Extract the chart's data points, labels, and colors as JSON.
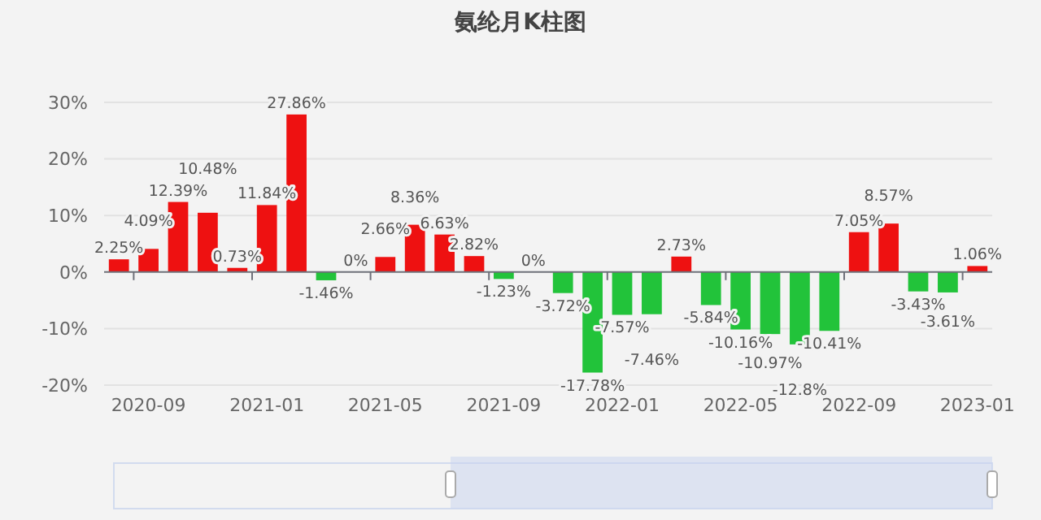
{
  "chart_data": {
    "type": "bar",
    "title": "氨纶月K柱图",
    "categories": [
      null,
      "2020-09",
      null,
      null,
      null,
      "2021-01",
      null,
      null,
      null,
      "2021-05",
      null,
      null,
      null,
      "2021-09",
      null,
      null,
      null,
      "2022-01",
      null,
      null,
      null,
      "2022-05",
      null,
      null,
      null,
      "2022-09",
      null,
      null,
      null,
      "2023-01"
    ],
    "values": [
      2.25,
      4.09,
      12.39,
      10.48,
      0.73,
      11.84,
      27.86,
      -1.46,
      0,
      2.66,
      8.36,
      6.63,
      2.82,
      -1.23,
      0,
      -3.72,
      -17.78,
      -7.57,
      -7.46,
      2.73,
      -5.84,
      -10.16,
      -10.97,
      -12.8,
      -10.41,
      7.05,
      8.57,
      -3.43,
      -3.61,
      1.06
    ],
    "value_labels": [
      "2.25%",
      "4.09%",
      "12.39%",
      "10.48%",
      "0.73%",
      "11.84%",
      "27.86%",
      "-1.46%",
      "0%",
      "2.66%",
      "8.36%",
      "6.63%",
      "2.82%",
      "-1.23%",
      "0%",
      "-3.72%",
      "-17.78%",
      "-7.57%",
      "-7.46%",
      "2.73%",
      "-5.84%",
      "-10.16%",
      "-10.97%",
      "-12.8%",
      "-10.41%",
      "7.05%",
      "8.57%",
      "-3.43%",
      "-3.61%",
      "1.06%"
    ],
    "colors": [
      "#ee1111",
      "#ee1111",
      "#ee1111",
      "#ee1111",
      "#ee1111",
      "#ee1111",
      "#ee1111",
      "#22c33a",
      "#22c33a",
      "#ee1111",
      "#ee1111",
      "#ee1111",
      "#ee1111",
      "#22c33a",
      "#22c33a",
      "#22c33a",
      "#22c33a",
      "#22c33a",
      "#22c33a",
      "#ee1111",
      "#22c33a",
      "#22c33a",
      "#22c33a",
      "#22c33a",
      "#22c33a",
      "#ee1111",
      "#ee1111",
      "#22c33a",
      "#22c33a",
      "#ee1111"
    ],
    "ylim": [
      -20,
      30
    ],
    "yticks": [
      {
        "value": -20,
        "label": "-20%"
      },
      {
        "value": -10,
        "label": "-10%"
      },
      {
        "value": 0,
        "label": "0%"
      },
      {
        "value": 10,
        "label": "10%"
      },
      {
        "value": 20,
        "label": "20%"
      },
      {
        "value": 30,
        "label": "30%"
      }
    ],
    "grid": "y"
  }
}
